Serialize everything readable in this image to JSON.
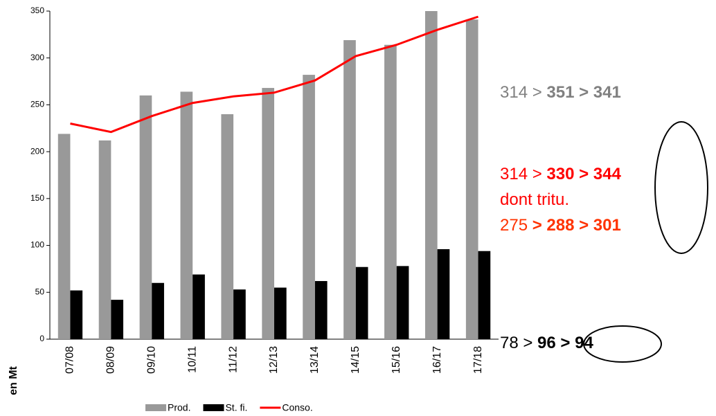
{
  "chart_data": {
    "type": "bar",
    "categories": [
      "07/08",
      "08/09",
      "09/10",
      "10/11",
      "11/12",
      "12/13",
      "13/14",
      "14/15",
      "15/16",
      "16/17",
      "17/18"
    ],
    "series": [
      {
        "name": "Prod.",
        "type": "bar",
        "color": "#999999",
        "values": [
          219,
          212,
          260,
          264,
          240,
          268,
          282,
          319,
          314,
          351,
          341
        ]
      },
      {
        "name": "St. fi.",
        "type": "bar",
        "color": "#000000",
        "values": [
          52,
          42,
          60,
          69,
          53,
          55,
          62,
          77,
          78,
          96,
          94
        ]
      },
      {
        "name": "Conso.",
        "type": "line",
        "color": "#ff0000",
        "values": [
          230,
          221,
          238,
          252,
          259,
          263,
          276,
          302,
          314,
          330,
          344
        ]
      }
    ],
    "ylim": [
      0,
      350
    ],
    "yticks": [
      0,
      50,
      100,
      150,
      200,
      250,
      300,
      350
    ],
    "y_label": "en Mt",
    "annotations": [
      {
        "color": "#808080",
        "parts": [
          {
            "text": "314 > ",
            "bold": false
          },
          {
            "text": "351 > 341",
            "bold": true
          }
        ]
      },
      {
        "color": "#ff0000",
        "parts": [
          {
            "text": "314 > ",
            "bold": false
          },
          {
            "text": "330 > 344",
            "bold": true
          }
        ]
      },
      {
        "color": "#ff0000",
        "parts": [
          {
            "text": "dont tritu.",
            "bold": false
          }
        ]
      },
      {
        "color": "#ff3300",
        "parts": [
          {
            "text": "275 ",
            "bold": false
          },
          {
            "text": "> 288 > 301",
            "bold": true
          }
        ]
      },
      {
        "color": "#000000",
        "parts": [
          {
            "text": "78 > ",
            "bold": false
          },
          {
            "text": "96 > 94",
            "bold": true
          }
        ]
      }
    ]
  }
}
